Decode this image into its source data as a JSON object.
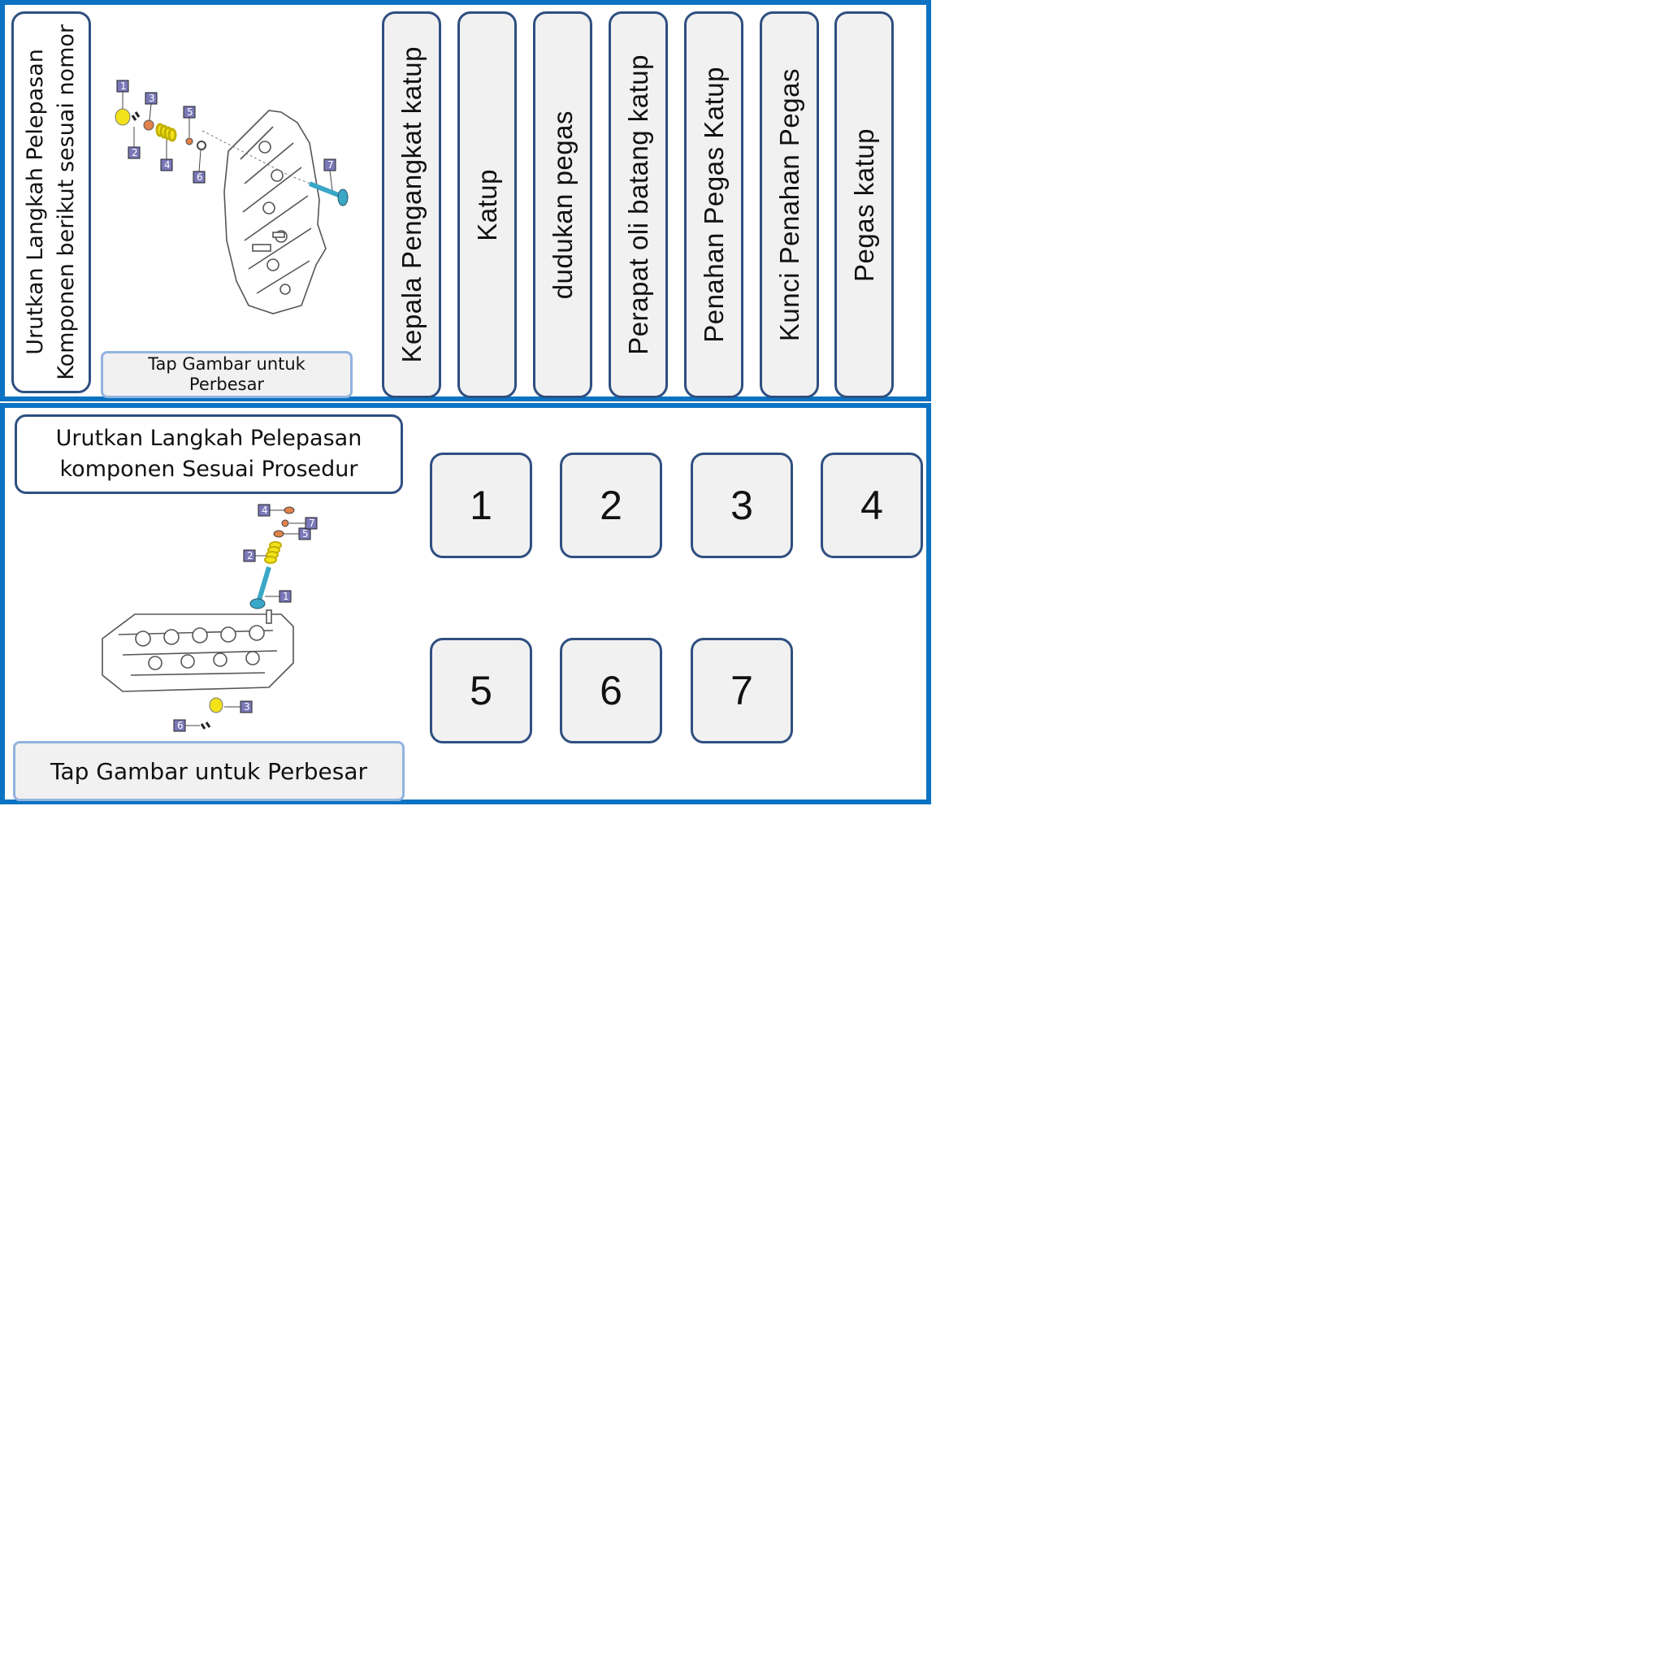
{
  "top": {
    "instruction_line1": "Urutkan Langkah Pelepasan",
    "instruction_line2": "Komponen berikut sesuai nomor",
    "tap_hint": "Tap Gambar untuk Perbesar",
    "diagram_callouts": [
      "1",
      "2",
      "3",
      "4",
      "5",
      "6",
      "7"
    ],
    "part_labels": [
      "Kepala Pengangkat katup",
      "Katup",
      "dudukan pegas",
      "Perapat oli batang katup",
      "Penahan Pegas Katup",
      "Kunci Penahan Pegas",
      "Pegas katup"
    ]
  },
  "bottom": {
    "instruction_line1": "Urutkan Langkah Pelepasan",
    "instruction_line2": "komponen Sesuai Prosedur",
    "tap_hint": "Tap Gambar untuk Perbesar",
    "diagram_callouts": [
      "1",
      "2",
      "3",
      "4",
      "5",
      "6",
      "7"
    ],
    "slots": [
      "1",
      "2",
      "3",
      "4",
      "5",
      "6",
      "7"
    ]
  },
  "colors": {
    "panel_border": "#0b73c2",
    "card_fill": "#f1f1f1",
    "card_border": "#2f4f80",
    "tap_border": "#93b3e0",
    "valve_color": "#3aa7c7",
    "spring_color": "#f2e21a",
    "seat_color": "#e0824a",
    "callout_fill": "#7a78b8"
  }
}
